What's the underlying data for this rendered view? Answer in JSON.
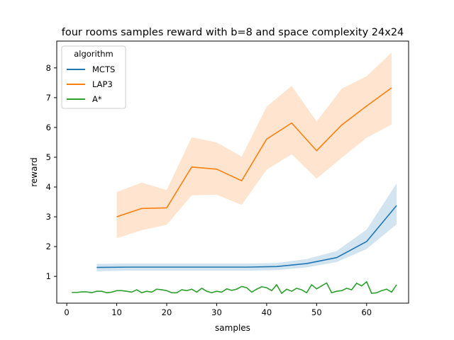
{
  "chart_data": {
    "type": "line",
    "title": "four rooms samples reward with b=8 and space complexity 24x24",
    "xlabel": "samples",
    "ylabel": "reward",
    "xlim": [
      -2,
      68.4
    ],
    "ylim": [
      0.1,
      8.9
    ],
    "xticks": [
      0,
      10,
      20,
      30,
      40,
      50,
      60
    ],
    "yticks": [
      1,
      2,
      3,
      4,
      5,
      6,
      7,
      8
    ],
    "grid": false,
    "legend": {
      "title": "algorithm",
      "placement": "top-left"
    },
    "series": [
      {
        "name": "MCTS",
        "color": "#1f77b4",
        "x": [
          6,
          12,
          18,
          24,
          30,
          36,
          42,
          48,
          54,
          60,
          66
        ],
        "y": [
          1.3,
          1.31,
          1.31,
          1.31,
          1.31,
          1.31,
          1.33,
          1.43,
          1.63,
          2.17,
          3.38
        ],
        "lower": [
          1.17,
          1.19,
          1.19,
          1.19,
          1.19,
          1.19,
          1.21,
          1.3,
          1.48,
          1.92,
          2.75
        ],
        "upper": [
          1.42,
          1.43,
          1.43,
          1.43,
          1.43,
          1.43,
          1.45,
          1.58,
          1.85,
          2.57,
          4.12
        ]
      },
      {
        "name": "LAP3",
        "color": "#ff7f0e",
        "x": [
          10,
          15,
          20,
          25,
          30,
          35,
          40,
          45,
          50,
          55,
          60,
          65
        ],
        "y": [
          3.0,
          3.28,
          3.3,
          4.67,
          4.6,
          4.21,
          5.61,
          6.15,
          5.22,
          6.08,
          6.72,
          7.33
        ],
        "lower": [
          2.28,
          2.55,
          2.73,
          3.72,
          3.74,
          3.4,
          4.58,
          5.1,
          4.28,
          4.98,
          5.65,
          6.1
        ],
        "upper": [
          3.83,
          4.15,
          3.9,
          5.67,
          5.5,
          5.02,
          6.7,
          7.4,
          6.2,
          7.3,
          7.72,
          8.52
        ]
      },
      {
        "name": "A*",
        "color": "#2ca02c",
        "x": [
          1,
          2,
          3,
          4,
          5,
          6,
          7,
          8,
          9,
          10,
          11,
          12,
          13,
          14,
          15,
          16,
          17,
          18,
          19,
          20,
          21,
          22,
          23,
          24,
          25,
          26,
          27,
          28,
          29,
          30,
          31,
          32,
          33,
          34,
          35,
          36,
          37,
          38,
          39,
          40,
          41,
          42,
          43,
          44,
          45,
          46,
          47,
          48,
          49,
          50,
          51,
          52,
          53,
          54,
          55,
          56,
          57,
          58,
          59,
          60,
          61,
          62,
          63,
          64,
          65,
          66
        ],
        "y": [
          0.46,
          0.46,
          0.48,
          0.48,
          0.45,
          0.5,
          0.5,
          0.45,
          0.47,
          0.52,
          0.52,
          0.5,
          0.47,
          0.55,
          0.45,
          0.5,
          0.47,
          0.57,
          0.55,
          0.52,
          0.45,
          0.45,
          0.55,
          0.52,
          0.57,
          0.47,
          0.6,
          0.5,
          0.45,
          0.5,
          0.47,
          0.58,
          0.53,
          0.57,
          0.66,
          0.62,
          0.47,
          0.57,
          0.65,
          0.62,
          0.52,
          0.72,
          0.43,
          0.57,
          0.5,
          0.6,
          0.55,
          0.45,
          0.72,
          0.58,
          0.68,
          0.78,
          0.45,
          0.5,
          0.52,
          0.6,
          0.55,
          0.77,
          0.68,
          0.82,
          0.43,
          0.45,
          0.52,
          0.57,
          0.47,
          0.72
        ]
      }
    ]
  }
}
